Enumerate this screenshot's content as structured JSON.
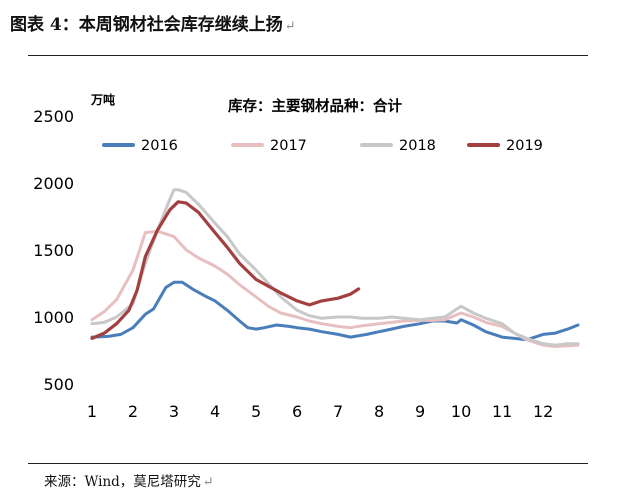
{
  "figure": {
    "caption": "图表 4：本周钢材社会库存继续上扬",
    "paragraph_mark": "↵",
    "source": "来源：Wind，莫尼塔研究",
    "source_mark": "↵"
  },
  "colors": {
    "2016": "#4a7ebb",
    "2017": "#e8bfc1",
    "2018": "#c8c8c8",
    "2019": "#a3403f",
    "text": "#000000",
    "rule": "#222222"
  },
  "chart_data": {
    "type": "line",
    "title": "库存：主要钢材品种：合计",
    "unit_label": "万吨",
    "xlabel": "",
    "ylabel": "",
    "xlim": [
      1,
      12.85
    ],
    "ylim": [
      500,
      2500
    ],
    "yticks": [
      500,
      1000,
      1500,
      2000,
      2500
    ],
    "xticks": [
      "1",
      "2",
      "3",
      "4",
      "5",
      "6",
      "7",
      "8",
      "9",
      "10",
      "11",
      "12"
    ],
    "grid": false,
    "legend_position": "top",
    "series": [
      {
        "name": "2016",
        "x": [
          1.0,
          1.4,
          1.7,
          2.0,
          2.3,
          2.5,
          2.8,
          3.0,
          3.2,
          3.5,
          3.8,
          4.0,
          4.3,
          4.6,
          4.8,
          5.0,
          5.2,
          5.5,
          5.8,
          6.0,
          6.3,
          6.6,
          7.0,
          7.3,
          7.7,
          8.0,
          8.3,
          8.6,
          9.0,
          9.3,
          9.6,
          9.9,
          10.0,
          10.3,
          10.6,
          11.0,
          11.3,
          11.6,
          12.0,
          12.3,
          12.6,
          12.85
        ],
        "values": [
          850,
          855,
          870,
          920,
          1020,
          1060,
          1220,
          1260,
          1260,
          1200,
          1150,
          1120,
          1050,
          970,
          920,
          910,
          920,
          940,
          930,
          920,
          910,
          890,
          870,
          850,
          870,
          890,
          910,
          930,
          950,
          970,
          970,
          955,
          980,
          940,
          890,
          850,
          840,
          830,
          870,
          880,
          910,
          940
        ]
      },
      {
        "name": "2017",
        "x": [
          1.0,
          1.3,
          1.6,
          2.0,
          2.3,
          2.6,
          3.0,
          3.3,
          3.6,
          4.0,
          4.3,
          4.6,
          5.0,
          5.3,
          5.6,
          6.0,
          6.3,
          6.6,
          7.0,
          7.3,
          7.6,
          8.0,
          8.3,
          8.6,
          9.0,
          9.3,
          9.6,
          10.0,
          10.3,
          10.6,
          11.0,
          11.3,
          11.6,
          12.0,
          12.3,
          12.6,
          12.85
        ],
        "values": [
          980,
          1040,
          1130,
          1350,
          1630,
          1640,
          1600,
          1500,
          1440,
          1380,
          1320,
          1240,
          1150,
          1080,
          1030,
          1000,
          970,
          950,
          930,
          920,
          935,
          950,
          960,
          970,
          975,
          975,
          980,
          1030,
          1000,
          960,
          930,
          880,
          830,
          790,
          780,
          785,
          790
        ]
      },
      {
        "name": "2018",
        "x": [
          1.0,
          1.3,
          1.6,
          2.0,
          2.3,
          2.6,
          2.9,
          3.0,
          3.1,
          3.3,
          3.6,
          4.0,
          4.3,
          4.6,
          5.0,
          5.3,
          5.6,
          6.0,
          6.3,
          6.6,
          7.0,
          7.3,
          7.6,
          8.0,
          8.3,
          8.6,
          9.0,
          9.3,
          9.6,
          10.0,
          10.3,
          10.6,
          11.0,
          11.3,
          11.6,
          12.0,
          12.3,
          12.6,
          12.85
        ],
        "values": [
          950,
          960,
          1000,
          1100,
          1400,
          1650,
          1880,
          1950,
          1950,
          1930,
          1840,
          1700,
          1600,
          1470,
          1350,
          1250,
          1150,
          1050,
          1010,
          990,
          1000,
          1000,
          990,
          990,
          1000,
          990,
          980,
          990,
          1000,
          1080,
          1030,
          990,
          950,
          880,
          840,
          800,
          790,
          800,
          800
        ]
      },
      {
        "name": "2019",
        "x": [
          1.0,
          1.3,
          1.6,
          1.9,
          2.1,
          2.3,
          2.6,
          2.9,
          3.1,
          3.3,
          3.6,
          4.0,
          4.3,
          4.6,
          5.0,
          5.3,
          5.6,
          6.0,
          6.3,
          6.6,
          7.0,
          7.3,
          7.5
        ],
        "values": [
          840,
          880,
          950,
          1050,
          1200,
          1450,
          1650,
          1800,
          1860,
          1850,
          1780,
          1630,
          1520,
          1400,
          1280,
          1230,
          1180,
          1120,
          1090,
          1120,
          1140,
          1170,
          1210
        ]
      }
    ]
  }
}
